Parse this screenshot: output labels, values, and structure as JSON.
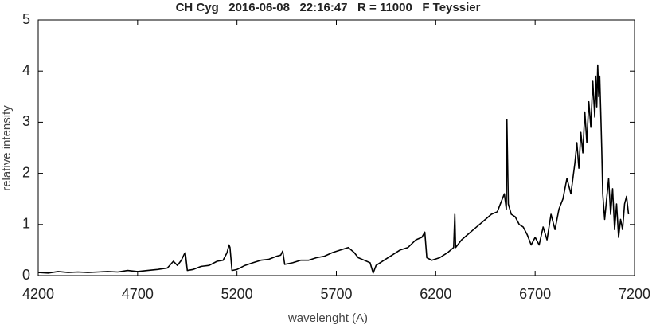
{
  "chart_data": {
    "type": "line",
    "title": "CH Cyg   2016-06-08   22:16:47   R = 11000   F Teyssier",
    "xlabel": "wavelenght (A)",
    "ylabel": "relative intensity",
    "xlim": [
      4200,
      7200
    ],
    "ylim": [
      0,
      5
    ],
    "xticks": [
      4200,
      4700,
      5200,
      5700,
      6200,
      6700,
      7200
    ],
    "yticks": [
      0,
      1,
      2,
      3,
      4,
      5
    ],
    "color": "#000000",
    "x": [
      4200,
      4250,
      4300,
      4350,
      4400,
      4450,
      4500,
      4550,
      4600,
      4650,
      4700,
      4750,
      4800,
      4850,
      4880,
      4900,
      4920,
      4935,
      4940,
      4950,
      4980,
      5020,
      5060,
      5100,
      5130,
      5150,
      5160,
      5165,
      5175,
      5200,
      5240,
      5280,
      5320,
      5360,
      5400,
      5420,
      5430,
      5440,
      5480,
      5520,
      5560,
      5600,
      5640,
      5680,
      5720,
      5760,
      5790,
      5810,
      5840,
      5870,
      5885,
      5900,
      5940,
      5980,
      6020,
      6060,
      6100,
      6130,
      6145,
      6155,
      6180,
      6220,
      6260,
      6290,
      6296,
      6300,
      6330,
      6360,
      6390,
      6420,
      6450,
      6480,
      6510,
      6530,
      6545,
      6555,
      6558,
      6565,
      6580,
      6600,
      6620,
      6640,
      6660,
      6680,
      6700,
      6720,
      6740,
      6760,
      6780,
      6800,
      6820,
      6840,
      6860,
      6880,
      6900,
      6910,
      6920,
      6930,
      6940,
      6950,
      6960,
      6970,
      6980,
      6990,
      7000,
      7005,
      7010,
      7015,
      7020,
      7025,
      7030,
      7035,
      7040,
      7050,
      7060,
      7070,
      7080,
      7090,
      7100,
      7110,
      7120,
      7130,
      7140,
      7150,
      7160,
      7170
    ],
    "values": [
      0.06,
      0.05,
      0.08,
      0.06,
      0.07,
      0.06,
      0.07,
      0.08,
      0.07,
      0.1,
      0.08,
      0.1,
      0.12,
      0.15,
      0.28,
      0.2,
      0.3,
      0.42,
      0.45,
      0.1,
      0.12,
      0.18,
      0.2,
      0.28,
      0.3,
      0.45,
      0.6,
      0.55,
      0.1,
      0.12,
      0.2,
      0.25,
      0.3,
      0.32,
      0.38,
      0.4,
      0.48,
      0.22,
      0.25,
      0.3,
      0.3,
      0.35,
      0.38,
      0.45,
      0.5,
      0.55,
      0.45,
      0.35,
      0.3,
      0.25,
      0.05,
      0.2,
      0.3,
      0.4,
      0.5,
      0.55,
      0.7,
      0.75,
      0.85,
      0.35,
      0.3,
      0.35,
      0.45,
      0.55,
      1.2,
      0.55,
      0.7,
      0.8,
      0.9,
      1.0,
      1.1,
      1.2,
      1.25,
      1.45,
      1.6,
      1.3,
      3.05,
      1.4,
      1.2,
      1.15,
      1.0,
      0.95,
      0.8,
      0.6,
      0.75,
      0.6,
      0.95,
      0.7,
      1.2,
      0.9,
      1.3,
      1.5,
      1.9,
      1.6,
      2.2,
      2.6,
      2.1,
      2.8,
      2.4,
      3.2,
      2.6,
      3.4,
      2.9,
      3.8,
      3.1,
      3.9,
      3.3,
      4.12,
      3.5,
      3.9,
      3.2,
      2.5,
      1.6,
      1.1,
      1.5,
      1.9,
      1.2,
      1.7,
      0.9,
      1.4,
      0.75,
      1.1,
      0.9,
      1.4,
      1.55,
      1.2
    ]
  }
}
